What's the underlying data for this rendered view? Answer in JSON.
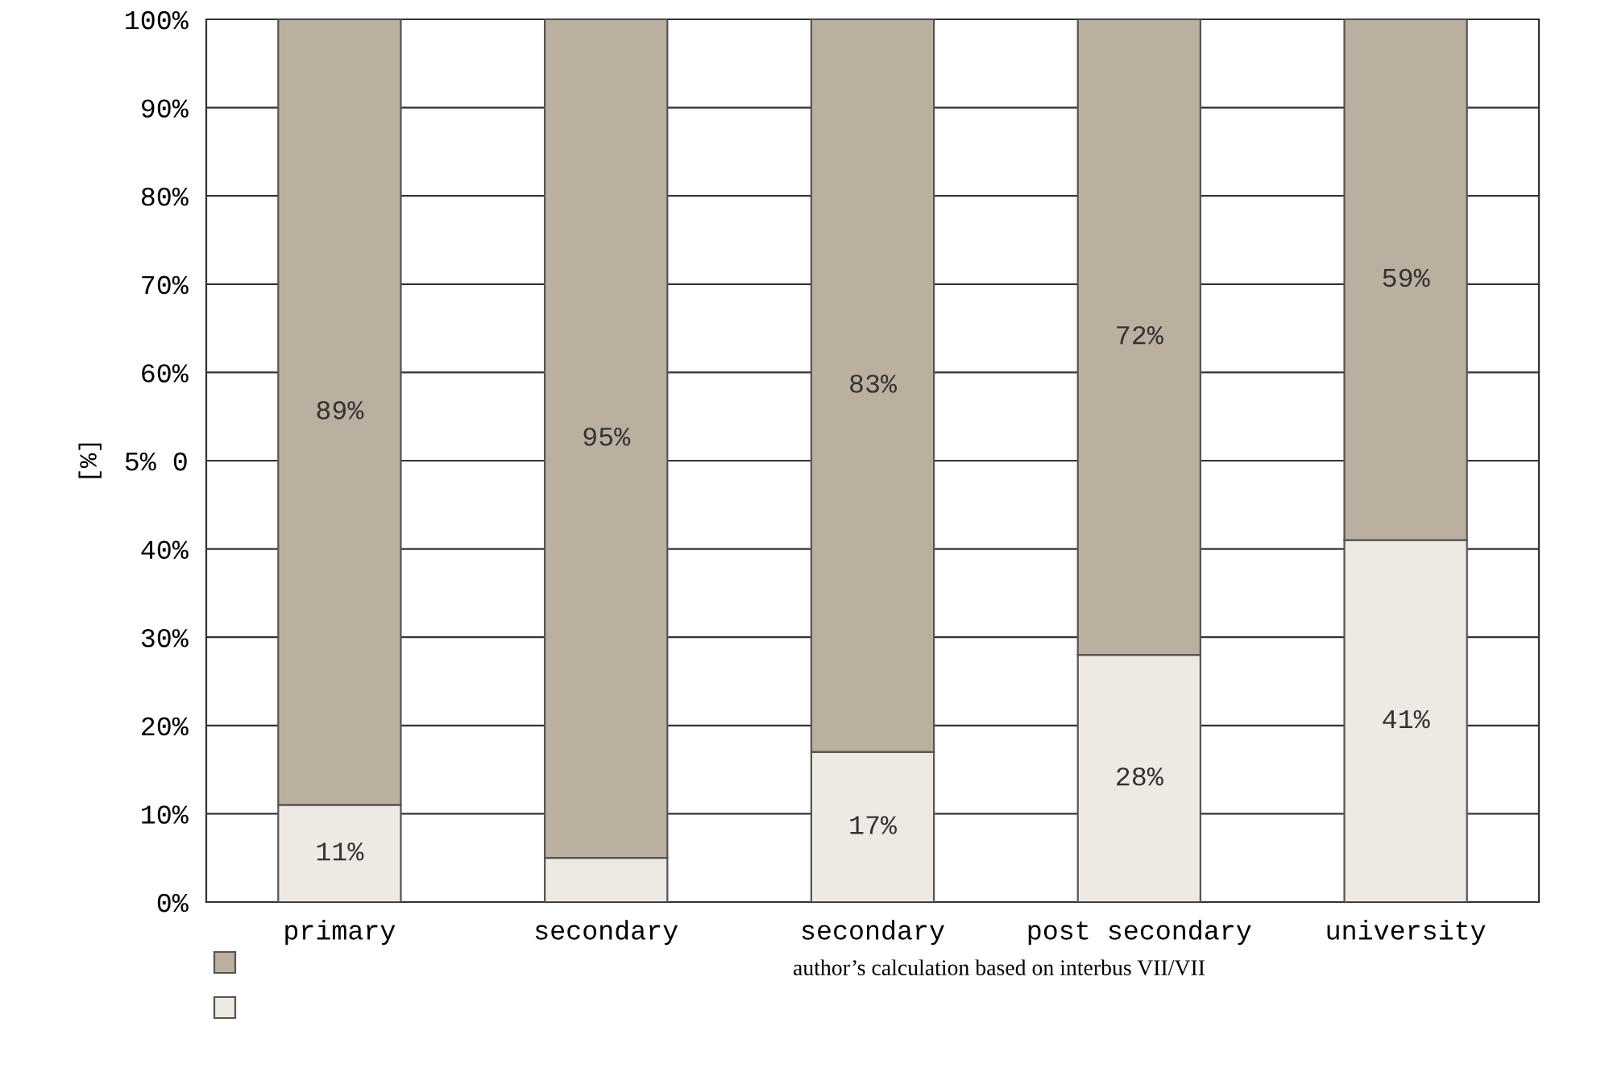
{
  "chart_data": {
    "type": "bar",
    "stacked": true,
    "categories": [
      "primary",
      "secondary",
      "secondary",
      "post secondary",
      "university"
    ],
    "series": [
      {
        "color": "#efe9e3",
        "values": [
          11,
          5,
          17,
          28,
          41
        ],
        "value_labels": [
          "11%",
          null,
          "17%",
          "28%",
          "41%"
        ]
      },
      {
        "color": "#bbaf9f",
        "values": [
          89,
          95,
          83,
          72,
          59
        ],
        "value_labels": [
          "89%",
          "95%",
          "83%",
          "72%",
          "59%"
        ]
      }
    ],
    "ylabel": "[%]",
    "ylim": [
      0,
      100
    ],
    "yticks": [
      {
        "value": 0,
        "label": "0%"
      },
      {
        "value": 10,
        "label": "10%"
      },
      {
        "value": 20,
        "label": "20%"
      },
      {
        "value": 30,
        "label": "30%"
      },
      {
        "value": 40,
        "label": "40%"
      },
      {
        "value": 50,
        "label": "5% 0"
      },
      {
        "value": 60,
        "label": "60%"
      },
      {
        "value": 70,
        "label": "70%"
      },
      {
        "value": 80,
        "label": "80%"
      },
      {
        "value": 90,
        "label": "90%"
      },
      {
        "value": 100,
        "label": "100%"
      }
    ],
    "grid": "y",
    "annotations": [
      "author’s calculation based on interbus VII/VII"
    ]
  }
}
